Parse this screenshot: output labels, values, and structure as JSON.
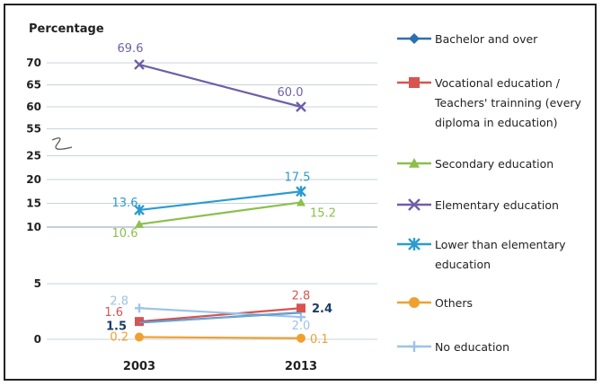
{
  "chart_data": {
    "type": "line",
    "ylabel": "Percentage",
    "categories": [
      "2003",
      "2013"
    ],
    "y_ticks": [
      "0",
      "5",
      "10",
      "15",
      "20",
      "25",
      "55",
      "60",
      "65",
      "70"
    ],
    "axis_break": true,
    "series": [
      {
        "name": "Bachelor and over",
        "values": [
          null,
          null
        ],
        "value_labels": [
          "",
          ""
        ],
        "color": "#2e6fae",
        "marker": "diamond"
      },
      {
        "name": "Vocational education / Teachers' trainning (every diploma in education)",
        "name_lines": [
          "Vocational education /",
          "Teachers' trainning (every",
          "diploma in education)"
        ],
        "values": [
          1.6,
          2.8
        ],
        "value_labels": [
          "1.6",
          "2.8"
        ],
        "color": "#d9534f",
        "marker": "square"
      },
      {
        "name": "Secondary education",
        "values": [
          10.6,
          15.2
        ],
        "value_labels": [
          "10.6",
          "15.2"
        ],
        "color": "#8cbf4c",
        "marker": "triangle"
      },
      {
        "name": "Elementary education",
        "values": [
          69.6,
          60.0
        ],
        "value_labels": [
          "69.6",
          "60.0"
        ],
        "color": "#6e5fa6",
        "marker": "x"
      },
      {
        "name": "Lower than elementary education",
        "name_lines": [
          "Lower than elementary",
          "education"
        ],
        "values": [
          13.6,
          17.5
        ],
        "value_labels": [
          "13.6",
          "17.5"
        ],
        "color": "#2b9bd0",
        "marker": "star"
      },
      {
        "name": "Others",
        "values": [
          0.2,
          0.1
        ],
        "value_labels": [
          "0.2",
          "0.1"
        ],
        "color": "#f0a030",
        "marker": "circle"
      },
      {
        "name": "No education",
        "values": [
          2.8,
          2.0
        ],
        "value_labels": [
          "2.8",
          "2.0"
        ],
        "color": "#9cc3e8",
        "marker": "plus"
      },
      {
        "name": "",
        "values": [
          1.5,
          2.4
        ],
        "value_labels": [
          "1.5",
          "2.4"
        ],
        "color": "#2e6fae",
        "marker": "none"
      }
    ]
  }
}
